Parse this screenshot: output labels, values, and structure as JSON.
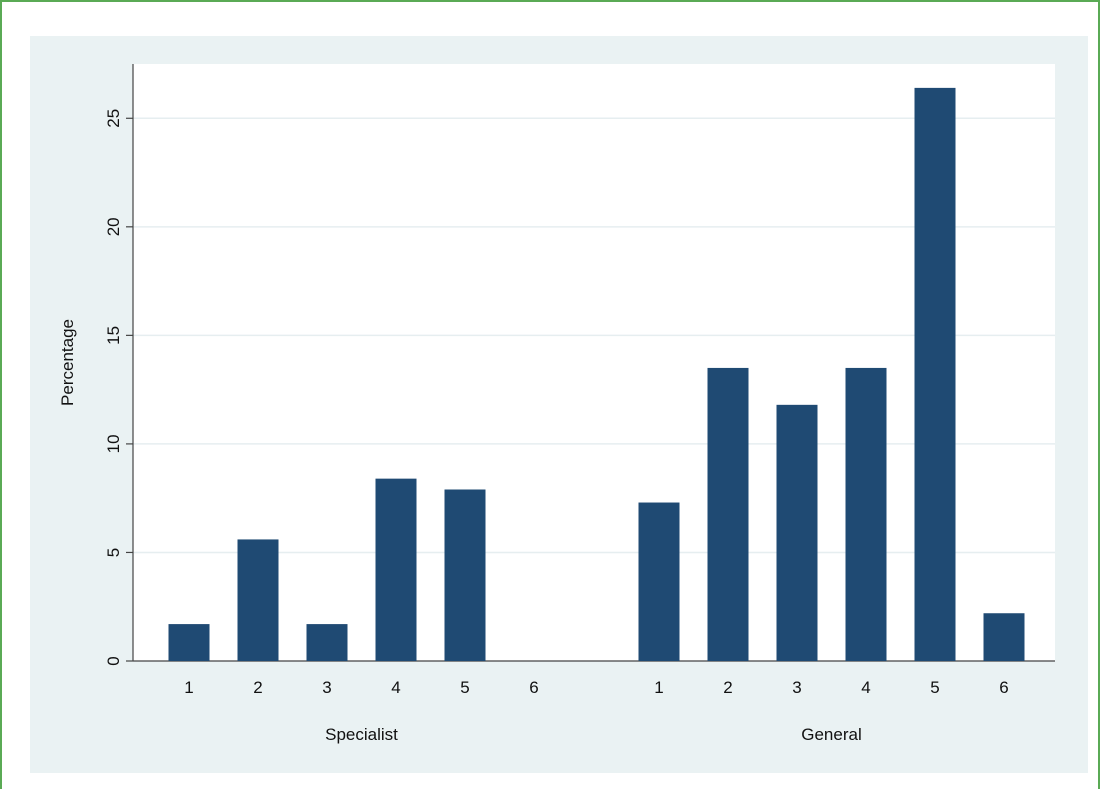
{
  "chart_data": {
    "type": "bar",
    "ylabel": "Percentage",
    "ylim": [
      0,
      27.5
    ],
    "yticks": [
      0,
      5,
      10,
      15,
      20,
      25
    ],
    "grid": true,
    "bar_color": "#1f4a73",
    "groups": [
      {
        "name": "Specialist",
        "categories": [
          "1",
          "2",
          "3",
          "4",
          "5",
          "6"
        ],
        "values": [
          1.7,
          5.6,
          1.7,
          8.4,
          7.9,
          0
        ]
      },
      {
        "name": "General",
        "categories": [
          "1",
          "2",
          "3",
          "4",
          "5",
          "6"
        ],
        "values": [
          7.3,
          13.5,
          11.8,
          13.5,
          26.4,
          2.2
        ]
      }
    ]
  }
}
